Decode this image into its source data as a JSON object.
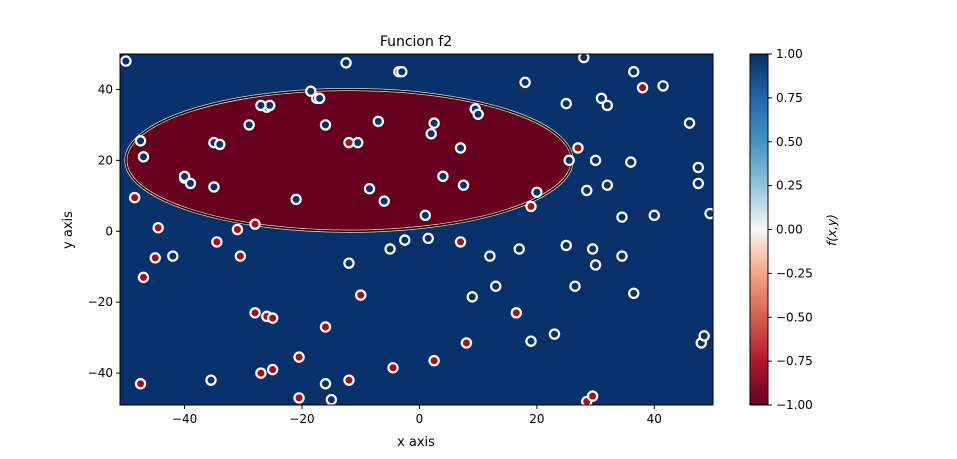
{
  "chart_data": {
    "type": "scatter",
    "title": "Funcion f2",
    "xlabel": "x axis",
    "ylabel": "y axis",
    "xlim": [
      -51,
      50
    ],
    "ylim": [
      -49,
      50
    ],
    "x_ticks": [
      -40,
      -20,
      0,
      20,
      40
    ],
    "y_ticks": [
      -40,
      -20,
      0,
      20,
      40
    ],
    "grid": false,
    "background_region": {
      "value": 1.0,
      "color": "#08306b"
    },
    "ellipse_region": {
      "value": -1.0,
      "color": "#67001f",
      "center": [
        -12,
        20
      ],
      "semi_axes": [
        38,
        20
      ]
    },
    "colorbar": {
      "label": "f(x,y)",
      "min": -1.0,
      "max": 1.0,
      "ticks": [
        "1.00",
        "0.75",
        "0.50",
        "0.25",
        "0.00",
        "−0.25",
        "−0.50",
        "−0.75",
        "−1.00"
      ],
      "colormap": "RdBu"
    },
    "series": [
      {
        "label_value": 1,
        "marker_color": "#08306b",
        "points": [
          [
            -50,
            48
          ],
          [
            -47.5,
            25.5
          ],
          [
            -47,
            21
          ],
          [
            -40,
            15
          ],
          [
            -39,
            13.5
          ],
          [
            -35,
            25
          ],
          [
            -34,
            24.5
          ],
          [
            -35,
            12.5
          ],
          [
            -29,
            30
          ],
          [
            -26,
            35
          ],
          [
            -25.5,
            35.5
          ],
          [
            -21,
            9
          ],
          [
            -18.5,
            39.5
          ],
          [
            -17.5,
            37.5
          ],
          [
            -16,
            30
          ],
          [
            -12.5,
            47.5
          ],
          [
            -8.5,
            12
          ],
          [
            -7,
            31
          ],
          [
            -6,
            8.5
          ],
          [
            -3.5,
            45
          ],
          [
            2,
            27.5
          ],
          [
            2.5,
            30.5
          ],
          [
            4,
            15.5
          ],
          [
            7,
            23.5
          ],
          [
            7.5,
            13
          ],
          [
            9.5,
            34.5
          ],
          [
            10,
            33
          ],
          [
            18,
            42
          ],
          [
            20,
            11
          ],
          [
            25,
            36
          ],
          [
            25.5,
            20
          ],
          [
            28.5,
            11.5
          ],
          [
            28,
            49
          ],
          [
            30,
            20
          ],
          [
            31,
            37.5
          ],
          [
            32,
            13
          ],
          [
            32,
            35.5
          ],
          [
            34.5,
            4
          ],
          [
            36,
            19.5
          ],
          [
            36.5,
            45
          ],
          [
            40,
            4.5
          ],
          [
            41.5,
            41
          ],
          [
            46,
            30.5
          ],
          [
            47.5,
            18
          ],
          [
            47.5,
            13.5
          ],
          [
            49.5,
            5
          ],
          [
            1,
            4.5
          ],
          [
            -10.5,
            25
          ],
          [
            -42,
            -7
          ],
          [
            -35.5,
            -42
          ],
          [
            -27,
            35.5
          ],
          [
            -12,
            -9
          ],
          [
            -5,
            -5
          ],
          [
            -2.5,
            -2.5
          ],
          [
            1.5,
            -2
          ],
          [
            -15,
            -47.5
          ],
          [
            -16,
            -43
          ],
          [
            9,
            -18.5
          ],
          [
            12,
            -7
          ],
          [
            13,
            -15.5
          ],
          [
            17,
            -5
          ],
          [
            19,
            -31
          ],
          [
            23,
            -29
          ],
          [
            25,
            -4
          ],
          [
            26.5,
            -15.5
          ],
          [
            29.5,
            -5
          ],
          [
            30,
            -9.5
          ],
          [
            34.5,
            -7
          ],
          [
            36.5,
            -17.5
          ],
          [
            48,
            -31.5
          ],
          [
            48.5,
            -29.5
          ],
          [
            -40,
            15.5
          ],
          [
            -17,
            37.5
          ],
          [
            -3,
            45
          ]
        ]
      },
      {
        "label_value": -1,
        "marker_color": "#a50f15",
        "points": [
          [
            -48.5,
            9.5
          ],
          [
            -47,
            -13
          ],
          [
            -45,
            -7.5
          ],
          [
            -44.5,
            1
          ],
          [
            -34.5,
            -3
          ],
          [
            -31,
            0.5
          ],
          [
            -30.5,
            -7
          ],
          [
            -28,
            2
          ],
          [
            -28,
            -23
          ],
          [
            -26,
            -24
          ],
          [
            -25,
            -24.5
          ],
          [
            -27,
            -40
          ],
          [
            -25,
            -39
          ],
          [
            -20.5,
            -35.5
          ],
          [
            -20.5,
            -47
          ],
          [
            -16,
            -27
          ],
          [
            -12,
            -42
          ],
          [
            -10,
            -18
          ],
          [
            -4.5,
            -38.5
          ],
          [
            -12,
            25
          ],
          [
            2.5,
            -36.5
          ],
          [
            7,
            -3
          ],
          [
            8,
            -31.5
          ],
          [
            16.5,
            -23
          ],
          [
            19,
            7
          ],
          [
            27,
            23.5
          ],
          [
            28.5,
            -48
          ],
          [
            29.5,
            -46.5
          ],
          [
            38,
            40.5
          ],
          [
            -47.5,
            -43
          ]
        ]
      }
    ]
  }
}
